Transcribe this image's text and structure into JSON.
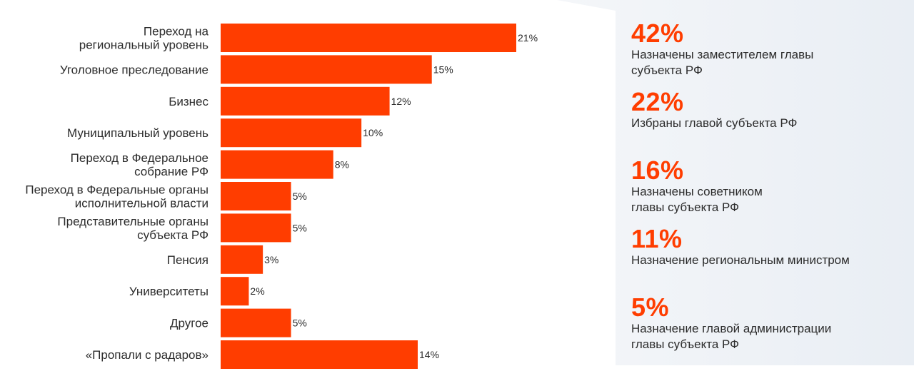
{
  "chart_data": {
    "type": "bar",
    "orientation": "horizontal",
    "categories": [
      "Переход на\nрегиональный уровень",
      "Уголовное преследование",
      "Бизнес",
      "Муниципальный уровень",
      "Переход в Федеральное\nсобрание РФ",
      "Переход в Федеральные органы\nисполнительной власти",
      "Представительные органы\nсубъекта РФ",
      "Пенсия",
      "Университеты",
      "Другое",
      "«Пропали с радаров»"
    ],
    "values": [
      21,
      15,
      12,
      10,
      8,
      5,
      5,
      3,
      2,
      5,
      14
    ],
    "value_labels": [
      "21%",
      "15%",
      "12%",
      "10%",
      "8%",
      "5%",
      "5%",
      "3%",
      "2%",
      "5%",
      "14%"
    ],
    "bar_color": "#ff3d00",
    "xlim": [
      0,
      21
    ],
    "grid": false,
    "legend": "none"
  },
  "panel": {
    "stats": [
      {
        "pct": "42%",
        "desc": "Назначены заместителем  главы\nсубъекта РФ"
      },
      {
        "pct": "22%",
        "desc": "Избраны главой субъекта РФ"
      },
      {
        "pct": "16%",
        "desc": "Назначены советником\nглавы субъекта РФ"
      },
      {
        "pct": "11%",
        "desc": "Назначение региональным министром"
      },
      {
        "pct": "5%",
        "desc": "Назначение главой администрации\nглавы субъекта РФ"
      }
    ],
    "accent_color": "#ff3d00"
  }
}
